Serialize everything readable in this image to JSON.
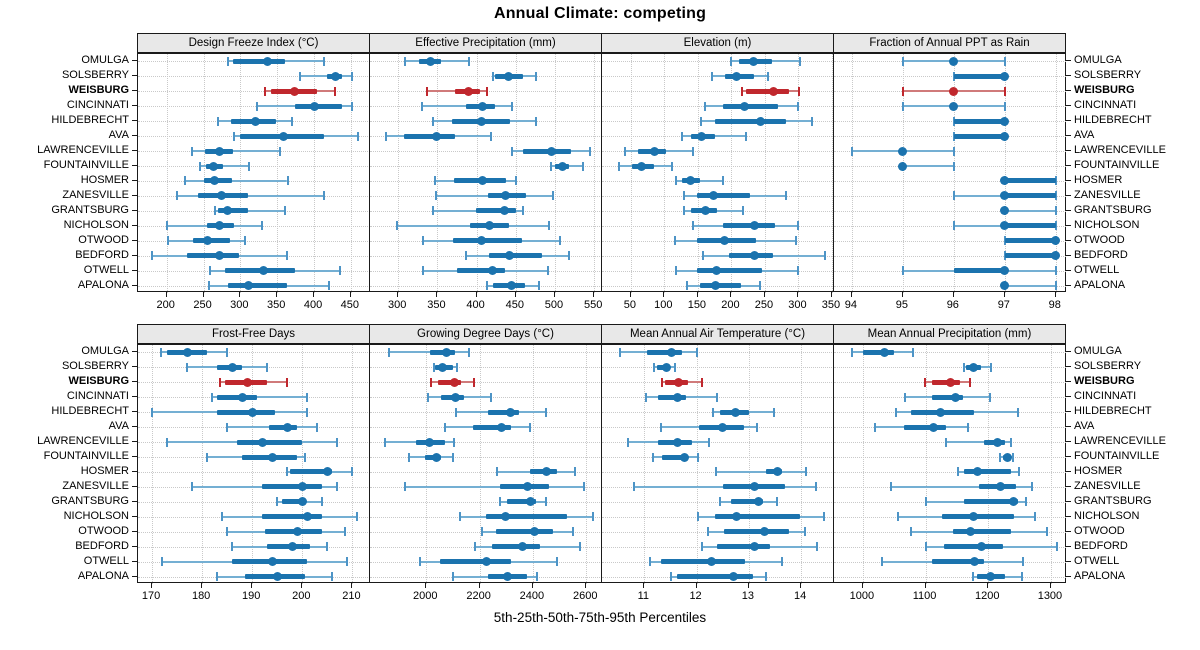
{
  "title": "Annual Climate: competing",
  "xlabel": "5th-25th-50th-75th-95th Percentiles",
  "colors": {
    "point": "#1b73ae",
    "range_light": "#74afd3",
    "cap_blue": "#4d94c6",
    "highlight_point": "#c0272d",
    "highlight_range": "#d07a7a",
    "strip_bg": "#e8e8e8",
    "panel_border": "#1a1a1a",
    "grid": "#c9c9c9"
  },
  "chart_data": {
    "type": "scatter",
    "subtype": "trellis percentile dotplot (5th-25th-50th-75th-95th)",
    "grid": "2 rows x 4 columns, shared category axis",
    "percentiles": [
      "5th",
      "25th",
      "50th",
      "75th",
      "95th"
    ],
    "categories": [
      "OMULGA",
      "SOLSBERRY",
      "WEISBURG",
      "CINCINNATI",
      "HILDEBRECHT",
      "AVA",
      "LAWRENCEVILLE",
      "FOUNTAINVILLE",
      "HOSMER",
      "ZANESVILLE",
      "GRANTSBURG",
      "NICHOLSON",
      "OTWOOD",
      "BEDFORD",
      "OTWELL",
      "APALONA"
    ],
    "highlight_category": "WEISBURG",
    "highlight_index": 2,
    "panels": [
      {
        "title": "Design Freeze Index (°C)",
        "ticks": [
          200,
          250,
          300,
          350,
          400,
          450
        ],
        "xlim": [
          161,
          476
        ],
        "values": [
          [
            283,
            290,
            337,
            361,
            413
          ],
          [
            381,
            417,
            429,
            438,
            451
          ],
          [
            333,
            342,
            374,
            404,
            429
          ],
          [
            322,
            374,
            400,
            438,
            451
          ],
          [
            270,
            287,
            320,
            349,
            370
          ],
          [
            291,
            299,
            358,
            414,
            460
          ],
          [
            234,
            252,
            271,
            290,
            354
          ],
          [
            245,
            254,
            264,
            276,
            312
          ],
          [
            225,
            251,
            265,
            288,
            364
          ],
          [
            214,
            242,
            274,
            311,
            414
          ],
          [
            265,
            269,
            282,
            311,
            360
          ],
          [
            201,
            255,
            272,
            292,
            330
          ],
          [
            202,
            235,
            255,
            286,
            306
          ],
          [
            180,
            228,
            271,
            298,
            363
          ],
          [
            259,
            279,
            332,
            374,
            435
          ],
          [
            257,
            283,
            311,
            363,
            420
          ]
        ]
      },
      {
        "title": "Effective Precipitation (mm)",
        "ticks": [
          300,
          350,
          400,
          450,
          500,
          550
        ],
        "xlim": [
          264,
          560
        ],
        "values": [
          [
            309,
            326,
            341,
            355,
            390
          ],
          [
            421,
            423,
            441,
            459,
            476
          ],
          [
            337,
            372,
            390,
            404,
            413
          ],
          [
            330,
            386,
            408,
            424,
            445
          ],
          [
            344,
            369,
            406,
            443,
            476
          ],
          [
            284,
            308,
            349,
            372,
            418
          ],
          [
            445,
            459,
            495,
            520,
            545
          ],
          [
            495,
            500,
            509,
            518,
            536
          ],
          [
            347,
            371,
            407,
            438,
            450
          ],
          [
            348,
            414,
            437,
            463,
            497
          ],
          [
            345,
            399,
            435,
            450,
            459
          ],
          [
            298,
            391,
            416,
            441,
            493
          ],
          [
            331,
            370,
            406,
            458,
            507
          ],
          [
            386,
            416,
            442,
            484,
            518
          ],
          [
            331,
            375,
            420,
            436,
            491
          ],
          [
            413,
            421,
            445,
            462,
            480
          ]
        ]
      },
      {
        "title": "Elevation (m)",
        "ticks": [
          50,
          100,
          150,
          200,
          250,
          300,
          350
        ],
        "xlim": [
          7,
          353
        ],
        "values": [
          [
            200,
            212,
            233,
            261,
            302
          ],
          [
            171,
            191,
            207,
            233,
            254
          ],
          [
            216,
            222,
            263,
            286,
            301
          ],
          [
            160,
            187,
            220,
            269,
            300
          ],
          [
            155,
            175,
            243,
            281,
            320
          ],
          [
            127,
            139,
            155,
            175,
            222
          ],
          [
            41,
            61,
            85,
            102,
            143
          ],
          [
            33,
            51,
            66,
            84,
            112
          ],
          [
            118,
            126,
            139,
            153,
            188
          ],
          [
            130,
            148,
            173,
            227,
            282
          ],
          [
            129,
            139,
            161,
            178,
            217
          ],
          [
            142,
            187,
            235,
            265,
            300
          ],
          [
            116,
            148,
            190,
            236,
            296
          ],
          [
            157,
            197,
            235,
            262,
            339
          ],
          [
            118,
            149,
            178,
            245,
            300
          ],
          [
            134,
            153,
            176,
            214,
            242
          ]
        ]
      },
      {
        "title": "Fraction of Annual PPT as Rain",
        "ticks": [
          94,
          95,
          96,
          97,
          98
        ],
        "xlim": [
          93.65,
          98.2
        ],
        "values": [
          [
            95,
            96,
            96,
            96,
            97
          ],
          [
            96,
            96,
            97,
            97,
            97
          ],
          [
            95,
            96,
            96,
            96,
            97
          ],
          [
            95,
            96,
            96,
            96,
            97
          ],
          [
            96,
            96,
            97,
            97,
            97
          ],
          [
            96,
            96,
            97,
            97,
            97
          ],
          [
            94,
            95,
            95,
            95,
            96
          ],
          [
            95,
            95,
            95,
            95,
            96
          ],
          [
            97,
            97,
            97,
            98,
            98
          ],
          [
            96,
            97,
            97,
            98,
            98
          ],
          [
            97,
            97,
            97,
            97,
            98
          ],
          [
            96,
            97,
            97,
            98,
            98
          ],
          [
            97,
            97,
            98,
            98,
            98
          ],
          [
            97,
            97,
            98,
            98,
            98
          ],
          [
            95,
            96,
            97,
            97,
            98
          ],
          [
            97,
            97,
            97,
            97,
            98
          ]
        ]
      },
      {
        "title": "Frost-Free Days",
        "ticks": [
          170,
          180,
          190,
          200,
          210
        ],
        "xlim": [
          167.2,
          213.5
        ],
        "values": [
          [
            171.7,
            173,
            177,
            181,
            185
          ],
          [
            177,
            183,
            186,
            188,
            193
          ],
          [
            183.5,
            184.5,
            189,
            193,
            197
          ],
          [
            182,
            183,
            188,
            191,
            201
          ],
          [
            170,
            183,
            190,
            194.5,
            201
          ],
          [
            185,
            193.3,
            197,
            199,
            203
          ],
          [
            173,
            187,
            192,
            200,
            207
          ],
          [
            181,
            188,
            194,
            199,
            200.5
          ],
          [
            197,
            197.5,
            205,
            206,
            210
          ],
          [
            178,
            192,
            200,
            204,
            207
          ],
          [
            195,
            196,
            200,
            200.5,
            204
          ],
          [
            184,
            192,
            201,
            204,
            211
          ],
          [
            185,
            192.5,
            199,
            204,
            208.5
          ],
          [
            186,
            193,
            198,
            201.5,
            205
          ],
          [
            172,
            186,
            194,
            201,
            209
          ],
          [
            183,
            188.5,
            195,
            200.5,
            206
          ]
        ]
      },
      {
        "title": "Growing Degree Days (°C)",
        "ticks": [
          2000,
          2200,
          2400,
          2600
        ],
        "xlim": [
          1789,
          2659
        ],
        "values": [
          [
            1862,
            2015,
            2074,
            2109,
            2161
          ],
          [
            2028,
            2034,
            2059,
            2100,
            2115
          ],
          [
            2019,
            2044,
            2105,
            2131,
            2180
          ],
          [
            2005,
            2055,
            2109,
            2142,
            2242
          ],
          [
            2112,
            2230,
            2315,
            2346,
            2449
          ],
          [
            2071,
            2175,
            2281,
            2317,
            2390
          ],
          [
            1846,
            1962,
            2012,
            2071,
            2105
          ],
          [
            1934,
            1996,
            2037,
            2055,
            2100
          ],
          [
            2265,
            2390,
            2450,
            2492,
            2559
          ],
          [
            1919,
            2277,
            2381,
            2459,
            2590
          ],
          [
            2275,
            2302,
            2390,
            2411,
            2449
          ],
          [
            2125,
            2224,
            2296,
            2527,
            2624
          ],
          [
            2209,
            2262,
            2405,
            2477,
            2549
          ],
          [
            2184,
            2246,
            2359,
            2425,
            2578
          ],
          [
            1978,
            2050,
            2225,
            2317,
            2490
          ],
          [
            2100,
            2230,
            2305,
            2377,
            2417
          ]
        ]
      },
      {
        "title": "Mean Annual Air Temperature (°C)",
        "ticks": [
          11,
          12,
          13,
          14
        ],
        "xlim": [
          10.19,
          14.63
        ],
        "values": [
          [
            10.54,
            11.06,
            11.52,
            11.73,
            12.0
          ],
          [
            11.18,
            11.25,
            11.43,
            11.5,
            11.58
          ],
          [
            11.33,
            11.39,
            11.66,
            11.84,
            12.1
          ],
          [
            11.03,
            11.27,
            11.63,
            11.79,
            12.39
          ],
          [
            12.31,
            12.45,
            12.75,
            13.0,
            13.49
          ],
          [
            11.32,
            12.05,
            12.5,
            12.9,
            13.15
          ],
          [
            10.68,
            11.27,
            11.63,
            11.91,
            12.24
          ],
          [
            11.17,
            11.33,
            11.76,
            11.82,
            12.03
          ],
          [
            12.37,
            13.33,
            13.54,
            13.63,
            14.1
          ],
          [
            10.81,
            12.5,
            13.11,
            13.7,
            14.28
          ],
          [
            12.44,
            12.66,
            13.18,
            13.27,
            13.53
          ],
          [
            12.03,
            12.35,
            12.77,
            13.97,
            14.44
          ],
          [
            12.21,
            12.52,
            13.3,
            13.76,
            14.08
          ],
          [
            12.1,
            12.39,
            13.11,
            13.41,
            14.31
          ],
          [
            11.1,
            11.32,
            12.28,
            12.92,
            13.63
          ],
          [
            11.52,
            11.63,
            12.7,
            13.08,
            13.33
          ]
        ]
      },
      {
        "title": "Mean Annual Precipitation (mm)",
        "ticks": [
          1000,
          1100,
          1200,
          1300
        ],
        "xlim": [
          954,
          1324
        ],
        "values": [
          [
            982,
            1000,
            1034,
            1050,
            1080
          ],
          [
            1161,
            1165,
            1177,
            1188,
            1204
          ],
          [
            1099,
            1111,
            1140,
            1155,
            1171
          ],
          [
            1067,
            1110,
            1147,
            1160,
            1203
          ],
          [
            1053,
            1077,
            1124,
            1178,
            1248
          ],
          [
            1019,
            1065,
            1113,
            1133,
            1168
          ],
          [
            1133,
            1194,
            1215,
            1226,
            1237
          ],
          [
            1219,
            1223,
            1231,
            1236,
            1239
          ],
          [
            1151,
            1162,
            1183,
            1236,
            1249
          ],
          [
            1045,
            1186,
            1220,
            1244,
            1270
          ],
          [
            1100,
            1162,
            1240,
            1247,
            1260
          ],
          [
            1056,
            1127,
            1177,
            1241,
            1275
          ],
          [
            1077,
            1143,
            1172,
            1236,
            1293
          ],
          [
            1100,
            1130,
            1190,
            1224,
            1310
          ],
          [
            1030,
            1111,
            1178,
            1194,
            1256
          ],
          [
            1175,
            1182,
            1203,
            1226,
            1254
          ]
        ]
      }
    ]
  }
}
